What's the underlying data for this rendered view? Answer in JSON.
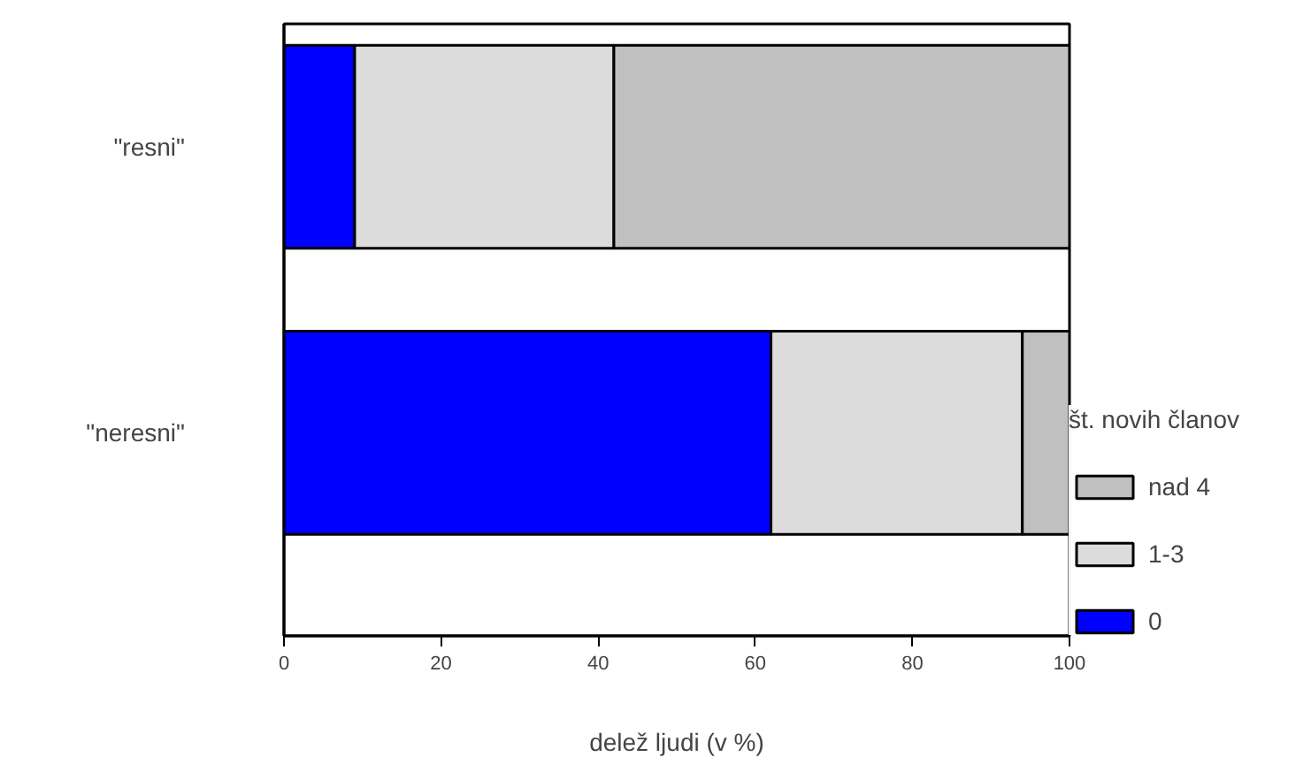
{
  "chart_data": {
    "type": "bar",
    "orientation": "horizontal",
    "stacked": true,
    "categories": [
      "\"resni\"",
      "\"neresni\""
    ],
    "series": [
      {
        "name": "0",
        "color": "#0000ff",
        "values": [
          9,
          62
        ]
      },
      {
        "name": "1-3",
        "color": "#dcdcdc",
        "values": [
          33,
          32
        ]
      },
      {
        "name": "nad 4",
        "color": "#c0c0c0",
        "values": [
          58,
          6
        ]
      }
    ],
    "xlabel": "delež ljudi (v %)",
    "legend_title": "št. novih članov",
    "legend": "right",
    "xlim": [
      0,
      100
    ],
    "xticks": [
      0,
      20,
      40,
      60,
      80,
      100
    ],
    "grid": false
  }
}
